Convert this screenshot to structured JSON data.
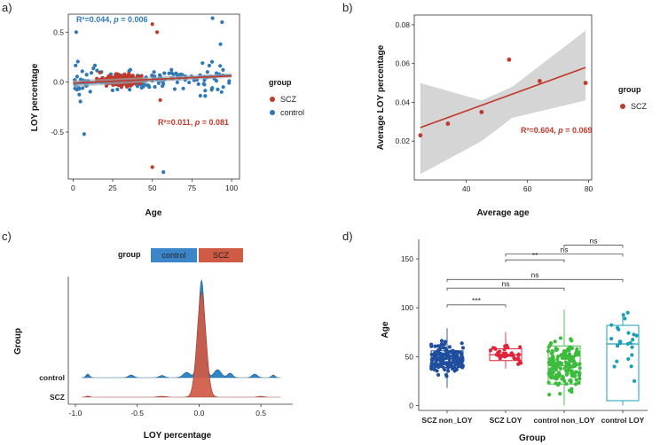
{
  "panel_labels": {
    "a": "a)",
    "b": "b)",
    "c": "c)",
    "d": "d)"
  },
  "colors": {
    "scz": "#c0392b",
    "control": "#2e78b7",
    "grey_band": "#d9d9d9",
    "scz_non_loy": "#1f4e9e",
    "scz_loy": "#e0253a",
    "control_non_loy": "#3dbb3d",
    "control_loy": "#1a9fb8"
  },
  "chart_data": [
    {
      "id": "a",
      "type": "scatter",
      "xlabel": "Age",
      "ylabel": "LOY percentage",
      "xlim": [
        -3,
        105
      ],
      "ylim": [
        -0.97,
        0.68
      ],
      "xticks": [
        "0",
        "25",
        "50",
        "75",
        "100"
      ],
      "yticks": [
        "0.5",
        "0.0",
        "-0.5"
      ],
      "legend": {
        "title": "group",
        "items": [
          "SCZ",
          "control"
        ]
      },
      "annotations": {
        "control_prefix": "R²=0.044, ",
        "control_p": "p",
        "control_suffix": " = 0.006",
        "scz_prefix": "R²=0.011, ",
        "scz_p": "p",
        "scz_suffix": " = 0.081"
      },
      "series": [
        {
          "name": "control",
          "fit": {
            "intercept": -0.02,
            "slope": 0.0009
          }
        },
        {
          "name": "SCZ",
          "fit": {
            "intercept": -0.008,
            "slope": 0.0007
          }
        }
      ],
      "outliers": [
        {
          "group": "control",
          "x": 2,
          "y": 0.5
        },
        {
          "group": "control",
          "x": 7,
          "y": -0.52
        },
        {
          "group": "control",
          "x": 57,
          "y": -0.9
        },
        {
          "group": "control",
          "x": 88,
          "y": 0.64
        },
        {
          "group": "control",
          "x": 94,
          "y": 0.6
        },
        {
          "group": "control",
          "x": 93,
          "y": 0.38
        },
        {
          "group": "SCZ",
          "x": 50,
          "y": 0.58
        },
        {
          "group": "SCZ",
          "x": 53,
          "y": 0.5
        },
        {
          "group": "SCZ",
          "x": 50,
          "y": -0.85
        },
        {
          "group": "SCZ",
          "x": 55,
          "y": -0.18
        }
      ]
    },
    {
      "id": "b",
      "type": "scatter",
      "xlabel": "Average age",
      "ylabel": "Average LOY percentage",
      "xlim": [
        23,
        81
      ],
      "ylim": [
        0.0,
        0.085
      ],
      "xticks": [
        "40",
        "60",
        "80"
      ],
      "yticks": [
        "0.02",
        "0.04",
        "0.06",
        "0.08"
      ],
      "legend": {
        "title": "group",
        "items": [
          "SCZ"
        ]
      },
      "annotations": {
        "prefix": "R²=0.604, ",
        "p": "p",
        "suffix": " = 0.069"
      },
      "x": [
        25,
        34,
        45,
        54,
        64,
        79
      ],
      "y": [
        0.023,
        0.029,
        0.035,
        0.062,
        0.051,
        0.05
      ],
      "fit": {
        "x": [
          25,
          79
        ],
        "y": [
          0.027,
          0.058
        ]
      },
      "ci": {
        "lower": [
          0.003,
          0.02,
          0.032,
          0.041
        ],
        "upper": [
          0.05,
          0.041,
          0.048,
          0.077
        ],
        "x": [
          25,
          45,
          55,
          79
        ]
      }
    },
    {
      "id": "c",
      "type": "density-ridge",
      "xlabel": "LOY percentage",
      "ylabel": "Group",
      "xlim": [
        -1.0,
        0.7
      ],
      "xticks": [
        "-1.0",
        "-0.5",
        "0.0",
        "0.5"
      ],
      "categories": [
        "control",
        "SCZ"
      ],
      "legend": {
        "title": "group",
        "items": [
          "control",
          "SCZ"
        ]
      }
    },
    {
      "id": "d",
      "type": "box",
      "xlabel": "Group",
      "ylabel": "Age",
      "ylim": [
        -5,
        170
      ],
      "yticks": [
        "0",
        "50",
        "100",
        "150"
      ],
      "categories": [
        "SCZ non_LOY",
        "SCZ LOY",
        "control non_LOY",
        "control LOY"
      ],
      "boxes": [
        {
          "q1": 39,
          "median": 48,
          "q3": 56,
          "whisker_low": 18,
          "whisker_high": 79,
          "n": 170,
          "spread": 12
        },
        {
          "q1": 46,
          "median": 52,
          "q3": 58,
          "whisker_low": 38,
          "whisker_high": 75,
          "n": 36,
          "spread": 7
        },
        {
          "q1": 22,
          "median": 41,
          "q3": 61,
          "whisker_low": 0,
          "whisker_high": 98,
          "n": 170,
          "spread": 22
        },
        {
          "q1": 5,
          "median": 63,
          "q3": 82,
          "whisker_low": 0,
          "whisker_high": 95,
          "n": 24,
          "spread": 30
        }
      ],
      "significance": [
        {
          "from": 0,
          "to": 1,
          "label": "***",
          "y": 103
        },
        {
          "from": 0,
          "to": 2,
          "label": "ns",
          "y": 120
        },
        {
          "from": 0,
          "to": 3,
          "label": "ns",
          "y": 129
        },
        {
          "from": 1,
          "to": 2,
          "label": "**",
          "y": 149
        },
        {
          "from": 1,
          "to": 3,
          "label": "ns",
          "y": 155
        },
        {
          "from": 2,
          "to": 3,
          "label": "ns",
          "y": 164
        }
      ]
    }
  ]
}
